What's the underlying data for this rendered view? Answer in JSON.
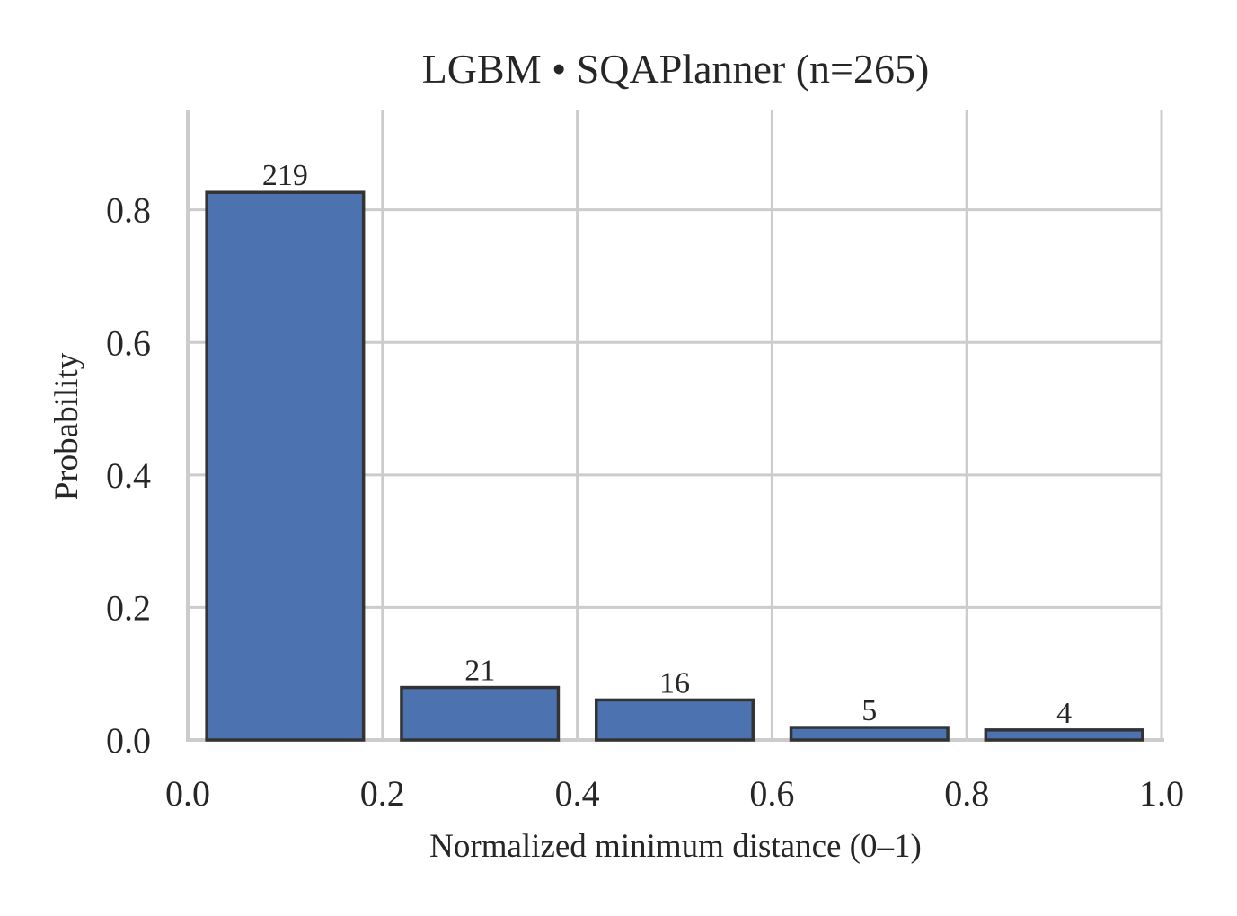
{
  "chart_data": {
    "type": "bar",
    "title": "LGBM • SQAPlanner  (n=265)",
    "xlabel": "Normalized minimum distance (0–1)",
    "ylabel": "Probability",
    "xlim": [
      0.0,
      1.0
    ],
    "ylim": [
      0.0,
      0.95
    ],
    "x_ticks": [
      0.0,
      0.2,
      0.4,
      0.6,
      0.8,
      1.0
    ],
    "x_tick_labels": [
      "0.0",
      "0.2",
      "0.4",
      "0.6",
      "0.8",
      "1.0"
    ],
    "y_ticks": [
      0.0,
      0.2,
      0.4,
      0.6,
      0.8
    ],
    "y_tick_labels": [
      "0.0",
      "0.2",
      "0.4",
      "0.6",
      "0.8"
    ],
    "bins": [
      {
        "x_start": 0.0,
        "x_end": 0.2,
        "value": 0.8264,
        "count_label": "219"
      },
      {
        "x_start": 0.2,
        "x_end": 0.4,
        "value": 0.0792,
        "count_label": "21"
      },
      {
        "x_start": 0.4,
        "x_end": 0.6,
        "value": 0.0604,
        "count_label": "16"
      },
      {
        "x_start": 0.6,
        "x_end": 0.8,
        "value": 0.0189,
        "count_label": "5"
      },
      {
        "x_start": 0.8,
        "x_end": 1.0,
        "value": 0.0151,
        "count_label": "4"
      }
    ],
    "grid": true,
    "bar_color": "#4c72b0",
    "bar_edge_color": "#333333",
    "grid_color": "#cccccc"
  }
}
